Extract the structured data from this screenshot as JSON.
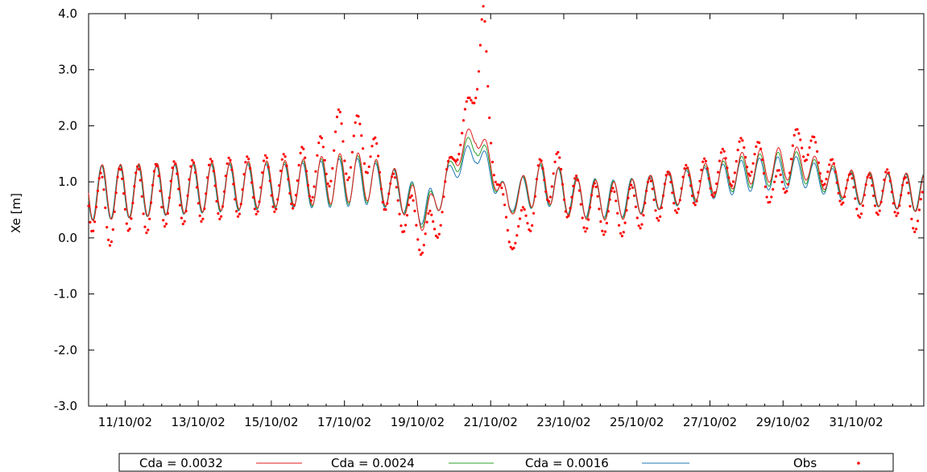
{
  "chart_data": {
    "type": "line",
    "title": "",
    "xlabel": "",
    "ylabel": "Xe [m]",
    "x_start": "2002-10-10",
    "xlim_days": [
      10.0,
      32.85
    ],
    "ylim": [
      -3.0,
      4.0
    ],
    "yticks": [
      -3.0,
      -2.0,
      -1.0,
      0.0,
      1.0,
      2.0,
      3.0,
      4.0
    ],
    "yticks_labels": [
      "-3.0",
      "-2.0",
      "-1.0",
      "0.0",
      "1.0",
      "2.0",
      "3.0",
      "4.0"
    ],
    "xticks_labels": [
      "11/10/02",
      "13/10/02",
      "15/10/02",
      "17/10/02",
      "19/10/02",
      "21/10/02",
      "23/10/02",
      "25/10/02",
      "27/10/02",
      "29/10/02",
      "31/10/02"
    ],
    "xticks_days": [
      11,
      13,
      15,
      17,
      19,
      21,
      23,
      25,
      27,
      29,
      31
    ],
    "grid": false,
    "legend_position": "bottom",
    "series": [
      {
        "name": "Cda = 0.0032",
        "color": "#e41a1c",
        "style": "line"
      },
      {
        "name": "Cda = 0.0024",
        "color": "#2ca02c",
        "style": "line"
      },
      {
        "name": "Cda = 0.0016",
        "color": "#1f77b4",
        "style": "line"
      },
      {
        "name": "Obs",
        "color": "#ff0000",
        "style": "points"
      }
    ],
    "mean_level": [
      [
        10.0,
        0.8
      ],
      [
        16.0,
        1.0
      ],
      [
        17.5,
        1.1
      ],
      [
        18.5,
        0.85
      ],
      [
        19.0,
        0.5
      ],
      [
        19.4,
        0.45
      ],
      [
        20.0,
        1.4
      ],
      [
        20.6,
        1.9
      ],
      [
        21.0,
        1.3
      ],
      [
        21.5,
        0.55
      ],
      [
        22.0,
        0.9
      ],
      [
        22.6,
        1.0
      ],
      [
        23.3,
        0.7
      ],
      [
        24.5,
        0.65
      ],
      [
        27.0,
        1.05
      ],
      [
        28.0,
        1.25
      ],
      [
        29.5,
        1.35
      ],
      [
        30.0,
        1.15
      ],
      [
        31.0,
        0.9
      ],
      [
        32.85,
        0.8
      ]
    ],
    "amplitude": [
      [
        10.0,
        0.5
      ],
      [
        15.5,
        0.4
      ],
      [
        17.0,
        0.45
      ],
      [
        18.5,
        0.35
      ],
      [
        19.3,
        0.35
      ],
      [
        20.0,
        0.2
      ],
      [
        21.0,
        0.25
      ],
      [
        21.6,
        0.2
      ],
      [
        22.2,
        0.4
      ],
      [
        24.0,
        0.35
      ],
      [
        27.0,
        0.3
      ],
      [
        29.0,
        0.3
      ],
      [
        30.0,
        0.25
      ],
      [
        31.5,
        0.3
      ],
      [
        32.85,
        0.35
      ]
    ],
    "surge_multipliers": [
      1.0,
      0.85,
      0.7
    ],
    "tidal_period_days": 0.5,
    "obs_extra": [
      [
        10.0,
        0.0
      ],
      [
        10.5,
        -0.4
      ],
      [
        11.0,
        -0.1
      ],
      [
        11.5,
        -0.2
      ],
      [
        12.0,
        -0.1
      ],
      [
        15.5,
        0.0
      ],
      [
        16.6,
        0.3
      ],
      [
        17.0,
        0.1
      ],
      [
        17.5,
        0.7
      ],
      [
        17.8,
        0.3
      ],
      [
        18.3,
        -0.2
      ],
      [
        19.0,
        -0.3
      ],
      [
        19.5,
        -0.4
      ],
      [
        20.2,
        0.2
      ],
      [
        20.8,
        1.0
      ],
      [
        21.1,
        0.2
      ],
      [
        21.4,
        -0.4
      ],
      [
        21.8,
        -0.7
      ],
      [
        22.3,
        -0.1
      ],
      [
        22.7,
        0.2
      ],
      [
        23.5,
        -0.1
      ],
      [
        24.5,
        -0.2
      ],
      [
        27.0,
        0.0
      ],
      [
        28.2,
        0.2
      ],
      [
        28.8,
        -0.6
      ],
      [
        29.5,
        0.4
      ],
      [
        30.3,
        0.0
      ],
      [
        31.0,
        -0.2
      ],
      [
        32.0,
        0.0
      ],
      [
        32.85,
        -0.4
      ]
    ]
  }
}
